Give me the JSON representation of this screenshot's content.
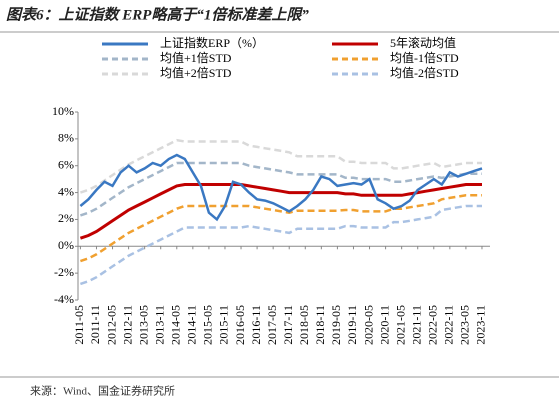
{
  "chart_data": {
    "type": "line",
    "title": "图表6：上证指数 ERP略高于“1倍标准差上限”",
    "source": "来源：Wind、国金证券研究所",
    "categories": [
      "2011-05",
      null,
      "2011-11",
      null,
      "2012-05",
      null,
      "2012-11",
      null,
      "2013-05",
      null,
      "2013-11",
      null,
      "2014-05",
      null,
      "2014-11",
      null,
      "2015-05",
      null,
      "2015-11",
      null,
      "2016-05",
      null,
      "2016-11",
      null,
      "2017-05",
      null,
      "2017-11",
      null,
      "2018-05",
      null,
      "2018-11",
      null,
      "2019-05",
      null,
      "2019-11",
      null,
      "2020-05",
      null,
      "2020-11",
      null,
      "2021-05",
      null,
      "2021-11",
      null,
      "2022-05",
      null,
      "2022-11",
      null,
      "2023-05",
      null,
      "2023-11"
    ],
    "ylim": [
      -4,
      10
    ],
    "yticks": [
      {
        "value": -4,
        "label": "-4%"
      },
      {
        "value": -2,
        "label": "-2%"
      },
      {
        "value": 0,
        "label": "0%"
      },
      {
        "value": 2,
        "label": "2%"
      },
      {
        "value": 4,
        "label": "4%"
      },
      {
        "value": 6,
        "label": "6%"
      },
      {
        "value": 8,
        "label": "8%"
      },
      {
        "value": 10,
        "label": "10%"
      }
    ],
    "legend": "top",
    "series": [
      {
        "name": "上证指数ERP（%）",
        "color": "#3a78c2",
        "dashed": false,
        "values": [
          3.0,
          3.5,
          4.2,
          4.8,
          4.5,
          5.5,
          6.0,
          5.5,
          5.8,
          6.2,
          6.0,
          6.5,
          6.8,
          6.5,
          5.5,
          4.5,
          2.5,
          2.0,
          3.0,
          4.8,
          4.6,
          4.0,
          3.5,
          3.4,
          3.2,
          2.9,
          2.6,
          3.0,
          3.5,
          4.2,
          5.2,
          5.0,
          4.5,
          4.6,
          4.7,
          4.6,
          5.0,
          3.5,
          3.2,
          2.8,
          3.0,
          3.4,
          4.2,
          4.6,
          5.0,
          4.6,
          5.5,
          5.2,
          5.4,
          5.6,
          5.8
        ]
      },
      {
        "name": "5年滚动均值",
        "color": "#c00000",
        "dashed": false,
        "values": [
          0.6,
          0.8,
          1.1,
          1.5,
          1.9,
          2.3,
          2.7,
          3.0,
          3.3,
          3.6,
          3.9,
          4.2,
          4.5,
          4.6,
          4.6,
          4.6,
          4.6,
          4.6,
          4.6,
          4.6,
          4.6,
          4.5,
          4.4,
          4.3,
          4.2,
          4.1,
          4.0,
          4.0,
          4.0,
          4.0,
          4.0,
          4.0,
          4.0,
          3.9,
          3.9,
          3.8,
          3.8,
          3.8,
          3.8,
          3.8,
          3.8,
          3.9,
          4.0,
          4.1,
          4.2,
          4.3,
          4.4,
          4.5,
          4.6,
          4.6,
          4.6
        ]
      },
      {
        "name": "均值+1倍STD",
        "color": "#a3b6c9",
        "dashed": true,
        "values": [
          2.3,
          2.5,
          2.8,
          3.2,
          3.6,
          4.0,
          4.4,
          4.7,
          5.0,
          5.3,
          5.6,
          5.9,
          6.2,
          6.2,
          6.2,
          6.2,
          6.2,
          6.2,
          6.2,
          6.2,
          6.2,
          6.0,
          5.9,
          5.8,
          5.7,
          5.6,
          5.5,
          5.35,
          5.35,
          5.35,
          5.35,
          5.35,
          5.35,
          5.1,
          5.1,
          5.0,
          5.0,
          5.0,
          5.0,
          4.8,
          4.8,
          4.9,
          5.0,
          5.1,
          5.2,
          5.1,
          5.2,
          5.3,
          5.4,
          5.4,
          5.4
        ]
      },
      {
        "name": "均值-1倍STD",
        "color": "#f0a030",
        "dashed": true,
        "values": [
          -1.1,
          -0.9,
          -0.6,
          -0.2,
          0.2,
          0.6,
          1.0,
          1.3,
          1.6,
          1.9,
          2.2,
          2.5,
          2.8,
          3.0,
          3.0,
          3.0,
          3.0,
          3.0,
          3.0,
          3.0,
          3.0,
          3.0,
          2.9,
          2.8,
          2.7,
          2.6,
          2.5,
          2.65,
          2.65,
          2.65,
          2.65,
          2.65,
          2.65,
          2.7,
          2.7,
          2.6,
          2.6,
          2.6,
          2.6,
          2.8,
          2.8,
          2.9,
          3.0,
          3.1,
          3.2,
          3.5,
          3.6,
          3.7,
          3.8,
          3.8,
          3.8
        ]
      },
      {
        "name": "均值+2倍STD",
        "color": "#d9d9d9",
        "dashed": true,
        "values": [
          4.0,
          4.2,
          4.5,
          4.9,
          5.3,
          5.7,
          6.1,
          6.4,
          6.7,
          7.0,
          7.3,
          7.6,
          7.9,
          7.8,
          7.8,
          7.8,
          7.8,
          7.8,
          7.8,
          7.8,
          7.8,
          7.5,
          7.4,
          7.3,
          7.2,
          7.1,
          7.0,
          6.7,
          6.7,
          6.7,
          6.7,
          6.7,
          6.7,
          6.3,
          6.3,
          6.2,
          6.2,
          6.2,
          6.2,
          5.8,
          5.8,
          5.9,
          6.0,
          6.1,
          6.2,
          5.9,
          6.0,
          6.1,
          6.2,
          6.2,
          6.2
        ]
      },
      {
        "name": "均值-2倍STD",
        "color": "#a9c1e3",
        "dashed": true,
        "values": [
          -2.8,
          -2.6,
          -2.3,
          -1.9,
          -1.5,
          -1.1,
          -0.7,
          -0.4,
          -0.1,
          0.2,
          0.5,
          0.8,
          1.1,
          1.4,
          1.4,
          1.4,
          1.4,
          1.4,
          1.4,
          1.4,
          1.4,
          1.5,
          1.4,
          1.3,
          1.2,
          1.1,
          1.0,
          1.3,
          1.3,
          1.3,
          1.3,
          1.3,
          1.3,
          1.5,
          1.5,
          1.4,
          1.4,
          1.4,
          1.4,
          1.8,
          1.8,
          1.9,
          2.0,
          2.1,
          2.2,
          2.7,
          2.8,
          2.9,
          3.0,
          3.0,
          3.0
        ]
      }
    ]
  }
}
